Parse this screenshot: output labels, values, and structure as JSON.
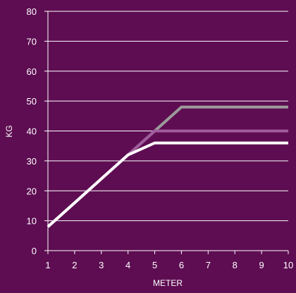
{
  "chart_data": {
    "type": "line",
    "title": "",
    "xlabel": "METER",
    "ylabel": "KG",
    "x": [
      1,
      2,
      3,
      4,
      5,
      6,
      7,
      8,
      9,
      10
    ],
    "x_ticks": [
      "1",
      "2",
      "3",
      "4",
      "5",
      "6",
      "7",
      "8",
      "9",
      "10"
    ],
    "y_ticks": [
      "0",
      "10",
      "20",
      "30",
      "40",
      "50",
      "60",
      "70",
      "80"
    ],
    "xlim": [
      1,
      10
    ],
    "ylim": [
      0,
      80
    ],
    "grid": true,
    "grid_axis": "y",
    "legend": "none",
    "series": [
      {
        "color": "#9b9b9b",
        "values": [
          8,
          16,
          24,
          32,
          40,
          48,
          48,
          48,
          48,
          48
        ]
      },
      {
        "color": "#a05c9c",
        "values": [
          8,
          16,
          24,
          32,
          40,
          40,
          40,
          40,
          40,
          40
        ]
      },
      {
        "color": "#ffffff",
        "values": [
          8,
          16,
          24,
          32,
          36,
          36,
          36,
          36,
          36,
          36
        ]
      }
    ]
  },
  "colors": {
    "background": "#5e0d52",
    "axis": "#ffffff",
    "gridline": "#ffffff",
    "text": "#ffffff"
  }
}
